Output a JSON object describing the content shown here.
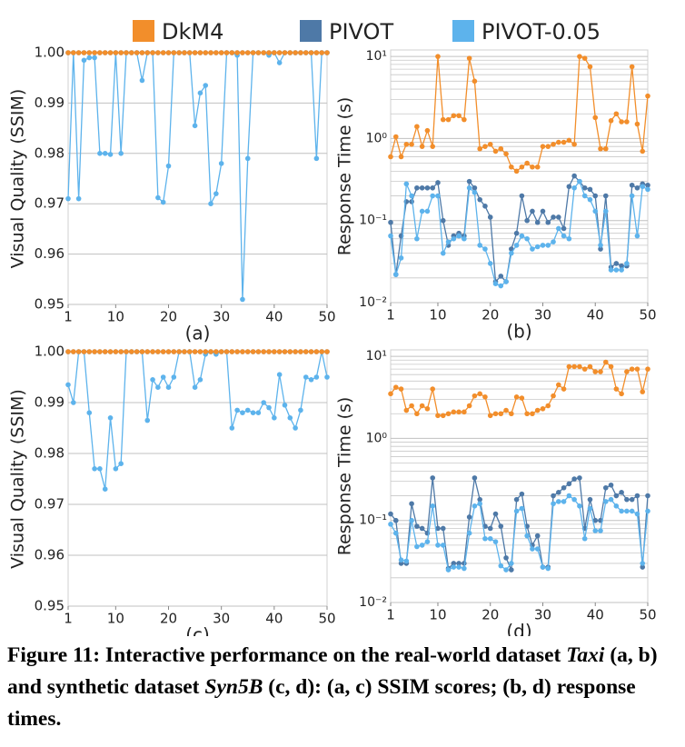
{
  "legend": [
    {
      "name": "DkM4",
      "color": "#f28e2b"
    },
    {
      "name": "PIVOT",
      "color": "#4e79a7"
    },
    {
      "name": "PIVOT-0.05",
      "color": "#5db3ec"
    }
  ],
  "chart_data": [
    {
      "type": "line",
      "xlabel": "(a)",
      "ylabel": "Visual Quality (SSIM)",
      "log": false,
      "grid": true,
      "x": [
        1,
        2,
        3,
        4,
        5,
        6,
        7,
        8,
        9,
        10,
        11,
        12,
        13,
        14,
        15,
        16,
        17,
        18,
        19,
        20,
        21,
        22,
        23,
        24,
        25,
        26,
        27,
        28,
        29,
        30,
        31,
        32,
        33,
        34,
        35,
        36,
        37,
        38,
        39,
        40,
        41,
        42,
        43,
        44,
        45,
        46,
        47,
        48,
        49,
        50
      ],
      "xlim": [
        1,
        50
      ],
      "xticks": [
        1,
        10,
        20,
        30,
        40,
        50
      ],
      "ylim": [
        0.95,
        1
      ],
      "yticks": [
        0.95,
        0.96,
        0.97,
        0.98,
        0.99,
        {
          "value": 1,
          "label": "1.00"
        }
      ],
      "series": [
        {
          "values": [
            1,
            1,
            1,
            1,
            1,
            1,
            1,
            1,
            1,
            1,
            1,
            1,
            1,
            1,
            1,
            1,
            1,
            1,
            1,
            1,
            1,
            1,
            1,
            1,
            1,
            1,
            1,
            1,
            1,
            1,
            1,
            1,
            1,
            1,
            1,
            1,
            1,
            1,
            1,
            1,
            1,
            1,
            1,
            1,
            1,
            1,
            1,
            1,
            1,
            1
          ]
        },
        {
          "values": [
            1,
            1,
            1,
            1,
            1,
            1,
            1,
            1,
            1,
            1,
            1,
            1,
            1,
            1,
            1,
            1,
            1,
            1,
            1,
            1,
            1,
            1,
            1,
            1,
            1,
            1,
            1,
            1,
            1,
            1,
            1,
            1,
            1,
            1,
            1,
            1,
            1,
            1,
            1,
            1,
            1,
            1,
            1,
            1,
            1,
            1,
            1,
            1,
            1,
            1
          ]
        },
        {
          "values": [
            0.971,
            1,
            0.971,
            0.9985,
            0.999,
            0.999,
            0.98,
            0.98,
            0.9798,
            1,
            0.98,
            1,
            1,
            1,
            0.9945,
            1,
            1,
            0.9712,
            0.9703,
            0.9775,
            1,
            1,
            1,
            1,
            0.9855,
            0.992,
            0.9935,
            0.97,
            0.972,
            0.978,
            1,
            1,
            0.9995,
            0.951,
            0.979,
            1,
            1,
            1,
            0.9995,
            1,
            0.998,
            1,
            1,
            1,
            1,
            1,
            1,
            0.979,
            1,
            1
          ]
        }
      ]
    },
    {
      "type": "line",
      "xlabel": "(b)",
      "ylabel": "Response Time (s)",
      "log": true,
      "grid": true,
      "x": [
        1,
        2,
        3,
        4,
        5,
        6,
        7,
        8,
        9,
        10,
        11,
        12,
        13,
        14,
        15,
        16,
        17,
        18,
        19,
        20,
        21,
        22,
        23,
        24,
        25,
        26,
        27,
        28,
        29,
        30,
        31,
        32,
        33,
        34,
        35,
        36,
        37,
        38,
        39,
        40,
        41,
        42,
        43,
        44,
        45,
        46,
        47,
        48,
        49,
        50
      ],
      "xlim": [
        1,
        50
      ],
      "xticks": [
        1,
        10,
        20,
        30,
        40,
        50
      ],
      "ylim": [
        0.01,
        12
      ],
      "yticks": [
        {
          "value": 0.01,
          "label": "10⁻²"
        },
        {
          "value": 0.1,
          "label": "10⁻¹"
        },
        {
          "value": 1,
          "label": "10⁰"
        },
        {
          "value": 10,
          "label": "10¹"
        }
      ],
      "series": [
        {
          "values": [
            0.6,
            1.05,
            0.6,
            0.85,
            0.85,
            1.4,
            0.8,
            1.25,
            0.8,
            10,
            1.7,
            1.7,
            1.9,
            1.9,
            1.7,
            9.5,
            5,
            0.75,
            0.8,
            0.85,
            0.7,
            0.75,
            0.65,
            0.45,
            0.4,
            0.45,
            0.5,
            0.45,
            0.45,
            0.8,
            0.8,
            0.85,
            0.9,
            0.9,
            0.95,
            0.85,
            10,
            9.5,
            7.5,
            1.8,
            0.75,
            0.75,
            1.65,
            2,
            1.6,
            1.6,
            7.5,
            1.5,
            0.7,
            3.3
          ]
        },
        {
          "values": [
            0.095,
            0.022,
            0.065,
            0.17,
            0.17,
            0.25,
            0.25,
            0.25,
            0.25,
            0.29,
            0.1,
            0.05,
            0.065,
            0.07,
            0.065,
            0.3,
            0.25,
            0.18,
            0.15,
            0.11,
            0.018,
            0.021,
            0.018,
            0.045,
            0.07,
            0.2,
            0.1,
            0.13,
            0.095,
            0.13,
            0.095,
            0.11,
            0.11,
            0.08,
            0.26,
            0.35,
            0.3,
            0.25,
            0.24,
            0.2,
            0.045,
            0.2,
            0.027,
            0.03,
            0.028,
            0.028,
            0.27,
            0.25,
            0.28,
            0.27
          ]
        },
        {
          "values": [
            0.065,
            0.022,
            0.035,
            0.28,
            0.2,
            0.06,
            0.13,
            0.13,
            0.2,
            0.2,
            0.04,
            0.055,
            0.06,
            0.065,
            0.06,
            0.25,
            0.22,
            0.05,
            0.045,
            0.03,
            0.017,
            0.016,
            0.018,
            0.04,
            0.05,
            0.065,
            0.06,
            0.045,
            0.048,
            0.05,
            0.05,
            0.055,
            0.08,
            0.065,
            0.06,
            0.25,
            0.3,
            0.2,
            0.18,
            0.13,
            0.05,
            0.13,
            0.025,
            0.025,
            0.025,
            0.03,
            0.2,
            0.065,
            0.26,
            0.24
          ]
        }
      ]
    },
    {
      "type": "line",
      "xlabel": "(c)",
      "ylabel": "Visual Quality (SSIM)",
      "log": false,
      "grid": true,
      "x": [
        1,
        2,
        3,
        4,
        5,
        6,
        7,
        8,
        9,
        10,
        11,
        12,
        13,
        14,
        15,
        16,
        17,
        18,
        19,
        20,
        21,
        22,
        23,
        24,
        25,
        26,
        27,
        28,
        29,
        30,
        31,
        32,
        33,
        34,
        35,
        36,
        37,
        38,
        39,
        40,
        41,
        42,
        43,
        44,
        45,
        46,
        47,
        48,
        49,
        50
      ],
      "xlim": [
        1,
        50
      ],
      "xticks": [
        1,
        10,
        20,
        30,
        40,
        50
      ],
      "ylim": [
        0.95,
        1
      ],
      "yticks": [
        0.95,
        0.96,
        0.97,
        0.98,
        0.99,
        {
          "value": 1,
          "label": "1.00"
        }
      ],
      "series": [
        {
          "values": [
            1,
            1,
            1,
            1,
            1,
            1,
            1,
            1,
            1,
            1,
            1,
            1,
            1,
            1,
            1,
            1,
            1,
            1,
            1,
            1,
            1,
            1,
            1,
            1,
            1,
            1,
            1,
            1,
            1,
            1,
            1,
            1,
            1,
            1,
            1,
            1,
            1,
            1,
            1,
            1,
            1,
            1,
            1,
            1,
            1,
            1,
            1,
            1,
            1,
            1
          ]
        },
        {
          "values": [
            1,
            1,
            1,
            1,
            1,
            1,
            1,
            1,
            1,
            1,
            1,
            1,
            1,
            1,
            1,
            1,
            1,
            1,
            1,
            1,
            1,
            1,
            1,
            1,
            1,
            1,
            1,
            1,
            1,
            1,
            1,
            1,
            1,
            1,
            1,
            1,
            1,
            1,
            1,
            1,
            1,
            1,
            1,
            1,
            1,
            1,
            1,
            1,
            1,
            1
          ]
        },
        {
          "values": [
            0.9935,
            0.99,
            1,
            1,
            0.988,
            0.977,
            0.977,
            0.973,
            0.987,
            0.977,
            0.978,
            1,
            1,
            1,
            1,
            0.9865,
            0.9945,
            0.993,
            0.995,
            0.993,
            0.995,
            1,
            1,
            1,
            0.993,
            0.9945,
            0.9995,
            1,
            0.9995,
            1,
            1,
            0.985,
            0.9885,
            0.988,
            0.9885,
            0.988,
            0.988,
            0.99,
            0.989,
            0.987,
            0.9955,
            0.9895,
            0.987,
            0.985,
            0.9885,
            0.995,
            0.9945,
            0.995,
            1,
            0.995
          ]
        }
      ]
    },
    {
      "type": "line",
      "xlabel": "(d)",
      "ylabel": "Response Time (s)",
      "log": true,
      "grid": true,
      "x": [
        1,
        2,
        3,
        4,
        5,
        6,
        7,
        8,
        9,
        10,
        11,
        12,
        13,
        14,
        15,
        16,
        17,
        18,
        19,
        20,
        21,
        22,
        23,
        24,
        25,
        26,
        27,
        28,
        29,
        30,
        31,
        32,
        33,
        34,
        35,
        36,
        37,
        38,
        39,
        40,
        41,
        42,
        43,
        44,
        45,
        46,
        47,
        48,
        49,
        50
      ],
      "xlim": [
        1,
        50
      ],
      "xticks": [
        1,
        10,
        20,
        30,
        40,
        50
      ],
      "ylim": [
        0.01,
        12
      ],
      "yticks": [
        {
          "value": 0.01,
          "label": "10⁻²"
        },
        {
          "value": 0.1,
          "label": "10⁻¹"
        },
        {
          "value": 1,
          "label": "10⁰"
        },
        {
          "value": 10,
          "label": "10¹"
        }
      ],
      "series": [
        {
          "values": [
            3.5,
            4.2,
            4,
            2.2,
            2.5,
            2,
            2.5,
            2.3,
            4,
            1.9,
            1.9,
            2,
            2.1,
            2.1,
            2.1,
            2.5,
            3.3,
            3.5,
            3.2,
            1.9,
            2,
            2,
            2.2,
            2,
            3.2,
            3.1,
            2,
            2,
            2.2,
            2.3,
            2.5,
            3.3,
            4.5,
            4,
            7.5,
            7.5,
            7.5,
            7,
            7.5,
            6.5,
            6.5,
            8.5,
            7.5,
            4,
            3.5,
            6.5,
            7,
            7,
            3.7,
            7
          ]
        },
        {
          "values": [
            0.12,
            0.1,
            0.03,
            0.03,
            0.16,
            0.085,
            0.08,
            0.07,
            0.33,
            0.08,
            0.08,
            0.026,
            0.03,
            0.03,
            0.03,
            0.11,
            0.33,
            0.18,
            0.085,
            0.08,
            0.12,
            0.085,
            0.035,
            0.025,
            0.18,
            0.21,
            0.085,
            0.05,
            0.065,
            0.027,
            0.027,
            0.2,
            0.22,
            0.25,
            0.28,
            0.32,
            0.33,
            0.08,
            0.18,
            0.1,
            0.1,
            0.25,
            0.27,
            0.2,
            0.22,
            0.18,
            0.18,
            0.2,
            0.027,
            0.2
          ]
        },
        {
          "values": [
            0.09,
            0.07,
            0.033,
            0.032,
            0.1,
            0.048,
            0.05,
            0.055,
            0.15,
            0.05,
            0.05,
            0.025,
            0.027,
            0.027,
            0.026,
            0.07,
            0.15,
            0.16,
            0.06,
            0.06,
            0.055,
            0.028,
            0.025,
            0.03,
            0.13,
            0.14,
            0.065,
            0.045,
            0.045,
            0.027,
            0.026,
            0.16,
            0.17,
            0.17,
            0.2,
            0.18,
            0.15,
            0.06,
            0.14,
            0.075,
            0.075,
            0.17,
            0.18,
            0.15,
            0.13,
            0.13,
            0.13,
            0.12,
            0.03,
            0.13
          ]
        }
      ]
    }
  ],
  "caption": [
    "Figure 11: Interactive performance on the real-world dataset ",
    "Taxi",
    " (a, b) and synthetic dataset ",
    "Syn5B",
    " (c, d): (a, c) SSIM scores; (b, d) response times."
  ]
}
